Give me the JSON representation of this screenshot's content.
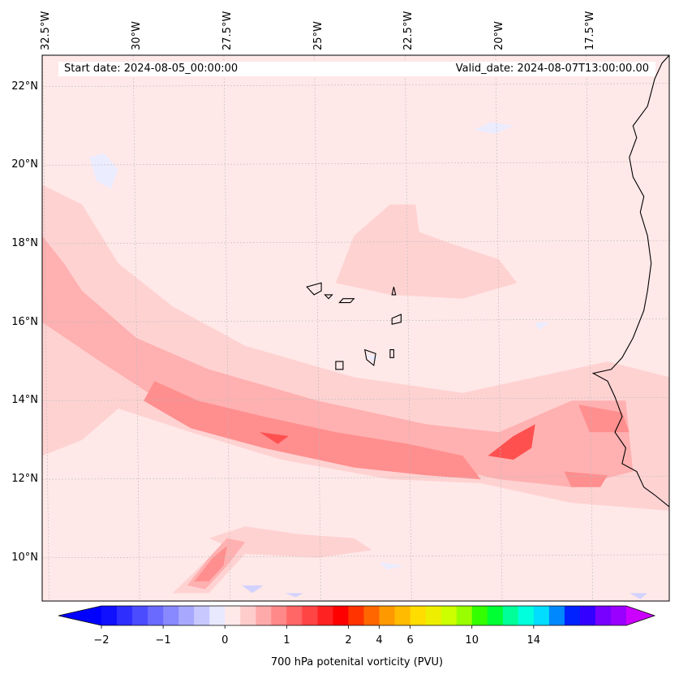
{
  "map": {
    "start_date_label": "Start date: 2024-08-05_00:00:00",
    "valid_date_label": "Valid_date: 2024-08-07T13:00:00.00",
    "lon_labels": [
      {
        "value": -32.5,
        "text": "32.5°W"
      },
      {
        "value": -30,
        "text": "30°W"
      },
      {
        "value": -27.5,
        "text": "27.5°W"
      },
      {
        "value": -25,
        "text": "25°W"
      },
      {
        "value": -22.5,
        "text": "22.5°W"
      },
      {
        "value": -20,
        "text": "20°W"
      },
      {
        "value": -17.5,
        "text": "17.5°W"
      }
    ],
    "lat_labels": [
      {
        "value": 22,
        "text": "22°N"
      },
      {
        "value": 20,
        "text": "20°N"
      },
      {
        "value": 18,
        "text": "18°N"
      },
      {
        "value": 16,
        "text": "16°N"
      },
      {
        "value": 14,
        "text": "14°N"
      },
      {
        "value": 12,
        "text": "12°N"
      },
      {
        "value": 10,
        "text": "10°N"
      }
    ],
    "lon_range": [
      -32.6,
      -15.3
    ],
    "lat_range": [
      8.9,
      22.8
    ],
    "gridlines": true,
    "background_color": "#ffe8e8",
    "coastline_color": "#000000"
  },
  "colorbar": {
    "title": "700 hPa potenital vorticity (PVU)",
    "tick_labels": [
      {
        "value": -2,
        "text": "−2"
      },
      {
        "value": -1,
        "text": "−1"
      },
      {
        "value": 0,
        "text": "0"
      },
      {
        "value": 1,
        "text": "1"
      },
      {
        "value": 2,
        "text": "2"
      },
      {
        "value": 4,
        "text": "4"
      },
      {
        "value": 6,
        "text": "6"
      },
      {
        "value": 10,
        "text": "10"
      },
      {
        "value": 14,
        "text": "14"
      }
    ],
    "colors": [
      "#1010ff",
      "#2e2eff",
      "#4c4cff",
      "#6a6aff",
      "#8888ff",
      "#a8a8ff",
      "#c8c8ff",
      "#e8e8ff",
      "#ffe8e8",
      "#ffcccc",
      "#ffaaaa",
      "#ff8888",
      "#ff6666",
      "#ff4444",
      "#ff2222",
      "#ff0000",
      "#ff3300",
      "#ff6600",
      "#ff9900",
      "#ffbb00",
      "#ffdd00",
      "#eeee00",
      "#ccff00",
      "#99ff00",
      "#33ff00",
      "#00ff33",
      "#00ff99",
      "#00ffdd",
      "#00ddff",
      "#0088ff",
      "#0022ff",
      "#3300ff",
      "#7700ff",
      "#9900ff"
    ],
    "under_color": "#0000ff",
    "over_color": "#cc00ff"
  },
  "pv_regions": [
    {
      "level": 0.25,
      "color": "#ffd2d2",
      "points": [
        [
          -32.6,
          19.5
        ],
        [
          -31.5,
          19.0
        ],
        [
          -30.5,
          17.5
        ],
        [
          -29.0,
          16.4
        ],
        [
          -27.0,
          15.4
        ],
        [
          -24.0,
          14.6
        ],
        [
          -21.0,
          14.2
        ],
        [
          -19.0,
          14.6
        ],
        [
          -17.0,
          15.0
        ],
        [
          -15.3,
          14.6
        ],
        [
          -15.3,
          11.2
        ],
        [
          -18.0,
          11.4
        ],
        [
          -20.5,
          11.9
        ],
        [
          -23.0,
          12.0
        ],
        [
          -26.0,
          12.5
        ],
        [
          -28.5,
          13.2
        ],
        [
          -30.5,
          13.8
        ],
        [
          -31.5,
          13.0
        ],
        [
          -32.6,
          12.6
        ]
      ]
    },
    {
      "level": 0.25,
      "color": "#ffd2d2",
      "points": [
        [
          -24.5,
          17.0
        ],
        [
          -24.0,
          18.2
        ],
        [
          -23.0,
          19.0
        ],
        [
          -22.3,
          19.0
        ],
        [
          -22.2,
          18.3
        ],
        [
          -21.3,
          18.0
        ],
        [
          -20.0,
          17.6
        ],
        [
          -19.5,
          17.0
        ],
        [
          -21.0,
          16.6
        ],
        [
          -23.0,
          16.7
        ]
      ]
    },
    {
      "level": 0.25,
      "color": "#ffd2d2",
      "points": [
        [
          -28.0,
          10.5
        ],
        [
          -27.0,
          10.8
        ],
        [
          -25.5,
          10.6
        ],
        [
          -24.0,
          10.5
        ],
        [
          -23.5,
          10.2
        ],
        [
          -25.0,
          10.0
        ],
        [
          -27.0,
          10.1
        ]
      ]
    },
    {
      "level": 0.25,
      "color": "#ffd2d2",
      "points": [
        [
          -29.0,
          9.1
        ],
        [
          -28.0,
          10.0
        ],
        [
          -27.2,
          10.6
        ],
        [
          -26.6,
          10.5
        ],
        [
          -27.3,
          9.8
        ],
        [
          -28.0,
          9.1
        ]
      ]
    },
    {
      "level": 0.5,
      "color": "#ffb0b0",
      "points": [
        [
          -32.6,
          18.2
        ],
        [
          -32.0,
          17.5
        ],
        [
          -31.5,
          16.8
        ],
        [
          -30.0,
          15.6
        ],
        [
          -28.0,
          14.8
        ],
        [
          -25.0,
          14.0
        ],
        [
          -22.0,
          13.4
        ],
        [
          -20.0,
          13.2
        ],
        [
          -18.0,
          14.0
        ],
        [
          -16.5,
          14.0
        ],
        [
          -16.3,
          12.2
        ],
        [
          -18.0,
          11.8
        ],
        [
          -20.0,
          12.0
        ],
        [
          -23.0,
          12.6
        ],
        [
          -26.0,
          13.0
        ],
        [
          -29.0,
          13.8
        ],
        [
          -31.0,
          15.0
        ],
        [
          -32.6,
          16.0
        ]
      ]
    },
    {
      "level": 0.5,
      "color": "#ffb0b0",
      "points": [
        [
          -28.6,
          9.3
        ],
        [
          -28.0,
          10.0
        ],
        [
          -27.5,
          10.5
        ],
        [
          -27.0,
          10.4
        ],
        [
          -27.5,
          9.8
        ],
        [
          -28.1,
          9.2
        ]
      ]
    },
    {
      "level": 1.0,
      "color": "#ff8e8e",
      "points": [
        [
          -29.5,
          14.5
        ],
        [
          -28.3,
          14.0
        ],
        [
          -26.5,
          13.6
        ],
        [
          -24.5,
          13.2
        ],
        [
          -22.5,
          12.9
        ],
        [
          -21.0,
          12.6
        ],
        [
          -20.5,
          12.0
        ],
        [
          -22.0,
          12.1
        ],
        [
          -24.0,
          12.3
        ],
        [
          -26.5,
          12.8
        ],
        [
          -28.5,
          13.3
        ],
        [
          -29.8,
          14.0
        ]
      ]
    },
    {
      "level": 1.0,
      "color": "#ff8e8e",
      "points": [
        [
          -28.4,
          9.4
        ],
        [
          -27.9,
          10.0
        ],
        [
          -27.5,
          10.3
        ],
        [
          -27.6,
          9.8
        ],
        [
          -28.0,
          9.4
        ]
      ]
    },
    {
      "level": 1.0,
      "color": "#ff8e8e",
      "points": [
        [
          -17.8,
          13.9
        ],
        [
          -16.6,
          13.7
        ],
        [
          -16.4,
          13.2
        ],
        [
          -17.5,
          13.2
        ]
      ]
    },
    {
      "level": 1.0,
      "color": "#ff8e8e",
      "points": [
        [
          -18.2,
          12.2
        ],
        [
          -17.0,
          12.1
        ],
        [
          -17.2,
          11.8
        ],
        [
          -18.0,
          11.8
        ]
      ]
    },
    {
      "level": 2.0,
      "color": "#ff5050",
      "points": [
        [
          -20.3,
          12.6
        ],
        [
          -19.6,
          13.1
        ],
        [
          -19.0,
          13.4
        ],
        [
          -19.1,
          12.8
        ],
        [
          -19.6,
          12.5
        ]
      ]
    },
    {
      "level": 2.0,
      "color": "#ff5050",
      "points": [
        [
          -26.6,
          13.2
        ],
        [
          -25.8,
          13.1
        ],
        [
          -26.1,
          12.9
        ]
      ]
    },
    {
      "level": -0.5,
      "color": "#ececff",
      "points": [
        [
          -31.3,
          20.2
        ],
        [
          -31.1,
          19.6
        ],
        [
          -30.7,
          19.4
        ],
        [
          -30.5,
          19.9
        ],
        [
          -30.9,
          20.3
        ]
      ]
    },
    {
      "level": -0.5,
      "color": "#ececff",
      "points": [
        [
          -20.7,
          20.9
        ],
        [
          -20.1,
          20.8
        ],
        [
          -19.6,
          21.0
        ],
        [
          -20.2,
          21.1
        ]
      ]
    },
    {
      "level": -0.5,
      "color": "#ececff",
      "points": [
        [
          -23.7,
          15.2
        ],
        [
          -23.3,
          15.1
        ],
        [
          -23.5,
          15.0
        ]
      ]
    },
    {
      "level": -0.5,
      "color": "#ececff",
      "points": [
        [
          -23.3,
          9.9
        ],
        [
          -22.6,
          9.8
        ],
        [
          -23.1,
          9.7
        ]
      ]
    },
    {
      "level": -0.5,
      "color": "#ececff",
      "points": [
        [
          -19.0,
          16.0
        ],
        [
          -18.6,
          16.0
        ],
        [
          -18.9,
          15.8
        ]
      ]
    },
    {
      "level": -1.0,
      "color": "#d2d2ff",
      "points": [
        [
          -25.9,
          9.1
        ],
        [
          -25.4,
          9.1
        ],
        [
          -25.6,
          9.0
        ]
      ]
    },
    {
      "level": -1.0,
      "color": "#d2d2ff",
      "points": [
        [
          -27.1,
          9.3
        ],
        [
          -26.5,
          9.3
        ],
        [
          -26.8,
          9.1
        ]
      ]
    },
    {
      "level": -1.0,
      "color": "#d2d2ff",
      "points": [
        [
          -16.4,
          9.1
        ],
        [
          -15.9,
          9.1
        ],
        [
          -16.1,
          8.95
        ]
      ]
    }
  ],
  "coastline": [
    [
      -15.3,
      22.8
    ],
    [
      -15.5,
      22.6
    ],
    [
      -15.7,
      22.2
    ],
    [
      -15.9,
      21.5
    ],
    [
      -16.3,
      21.0
    ],
    [
      -16.2,
      20.7
    ],
    [
      -16.4,
      20.2
    ],
    [
      -16.3,
      19.7
    ],
    [
      -16.0,
      19.2
    ],
    [
      -16.1,
      18.8
    ],
    [
      -15.9,
      18.2
    ],
    [
      -15.8,
      17.5
    ],
    [
      -15.9,
      16.8
    ],
    [
      -16.0,
      16.3
    ],
    [
      -16.3,
      15.6
    ],
    [
      -16.6,
      15.1
    ],
    [
      -16.9,
      14.8
    ],
    [
      -17.4,
      14.7
    ],
    [
      -17.0,
      14.5
    ],
    [
      -16.8,
      14.1
    ],
    [
      -16.6,
      13.6
    ],
    [
      -16.8,
      13.2
    ],
    [
      -16.5,
      12.8
    ],
    [
      -16.6,
      12.4
    ],
    [
      -16.2,
      12.2
    ],
    [
      -16.0,
      11.8
    ],
    [
      -15.7,
      11.6
    ],
    [
      -15.3,
      11.3
    ]
  ],
  "islands": [
    [
      [
        -25.3,
        16.9
      ],
      [
        -24.9,
        17.0
      ],
      [
        -24.9,
        16.8
      ],
      [
        -25.1,
        16.7
      ]
    ],
    [
      [
        -24.8,
        16.7
      ],
      [
        -24.6,
        16.7
      ],
      [
        -24.7,
        16.6
      ]
    ],
    [
      [
        -24.3,
        16.6
      ],
      [
        -24.0,
        16.6
      ],
      [
        -24.1,
        16.5
      ],
      [
        -24.4,
        16.5
      ]
    ],
    [
      [
        -22.9,
        16.9
      ],
      [
        -22.85,
        16.7
      ],
      [
        -22.95,
        16.7
      ]
    ],
    [
      [
        -22.95,
        16.1
      ],
      [
        -22.7,
        16.2
      ],
      [
        -22.7,
        16.0
      ],
      [
        -22.95,
        15.95
      ]
    ],
    [
      [
        -23.7,
        15.3
      ],
      [
        -23.4,
        15.2
      ],
      [
        -23.45,
        14.9
      ],
      [
        -23.65,
        15.05
      ]
    ],
    [
      [
        -23.0,
        15.3
      ],
      [
        -22.9,
        15.3
      ],
      [
        -22.9,
        15.1
      ],
      [
        -23.0,
        15.1
      ]
    ],
    [
      [
        -24.5,
        15.0
      ],
      [
        -24.3,
        15.0
      ],
      [
        -24.3,
        14.8
      ],
      [
        -24.5,
        14.8
      ]
    ]
  ]
}
